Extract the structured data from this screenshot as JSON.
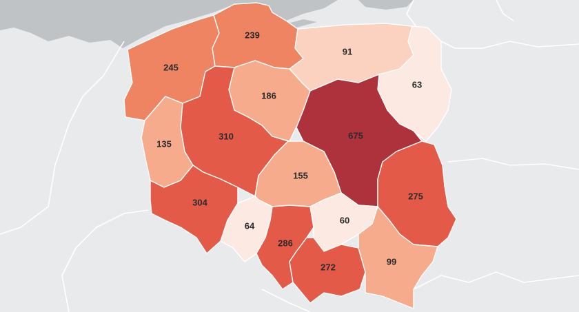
{
  "colors": {
    "background": "#e9eaeb",
    "sea": "#bfc3c6",
    "scale": [
      "#fce9e1",
      "#fbd2bf",
      "#f6ab8c",
      "#ef8462",
      "#e45a48",
      "#d4463f",
      "#ad323b"
    ]
  },
  "regions": [
    {
      "id": "zachodniopomorskie",
      "value": "245",
      "color": "#ef8462"
    },
    {
      "id": "pomorskie",
      "value": "239",
      "color": "#ef8462"
    },
    {
      "id": "warminsko-mazurskie",
      "value": "91",
      "color": "#fbd2bf"
    },
    {
      "id": "podlaskie",
      "value": "63",
      "color": "#fce9e1"
    },
    {
      "id": "kujawsko-pomorskie",
      "value": "186",
      "color": "#f6ab8c"
    },
    {
      "id": "lubuskie",
      "value": "135",
      "color": "#f6ab8c"
    },
    {
      "id": "wielkopolskie",
      "value": "310",
      "color": "#e45a48"
    },
    {
      "id": "mazowieckie",
      "value": "675",
      "color": "#ad323b"
    },
    {
      "id": "lodzkie",
      "value": "155",
      "color": "#f6ab8c"
    },
    {
      "id": "lubelskie",
      "value": "275",
      "color": "#e45a48"
    },
    {
      "id": "dolnoslaskie",
      "value": "304",
      "color": "#e45a48"
    },
    {
      "id": "opolskie",
      "value": "64",
      "color": "#fce9e1"
    },
    {
      "id": "slaskie",
      "value": "286",
      "color": "#e45a48"
    },
    {
      "id": "swietokrzyskie",
      "value": "60",
      "color": "#fce9e1"
    },
    {
      "id": "malopolskie",
      "value": "272",
      "color": "#e45a48"
    },
    {
      "id": "podkarpackie",
      "value": "99",
      "color": "#f6ab8c"
    }
  ]
}
